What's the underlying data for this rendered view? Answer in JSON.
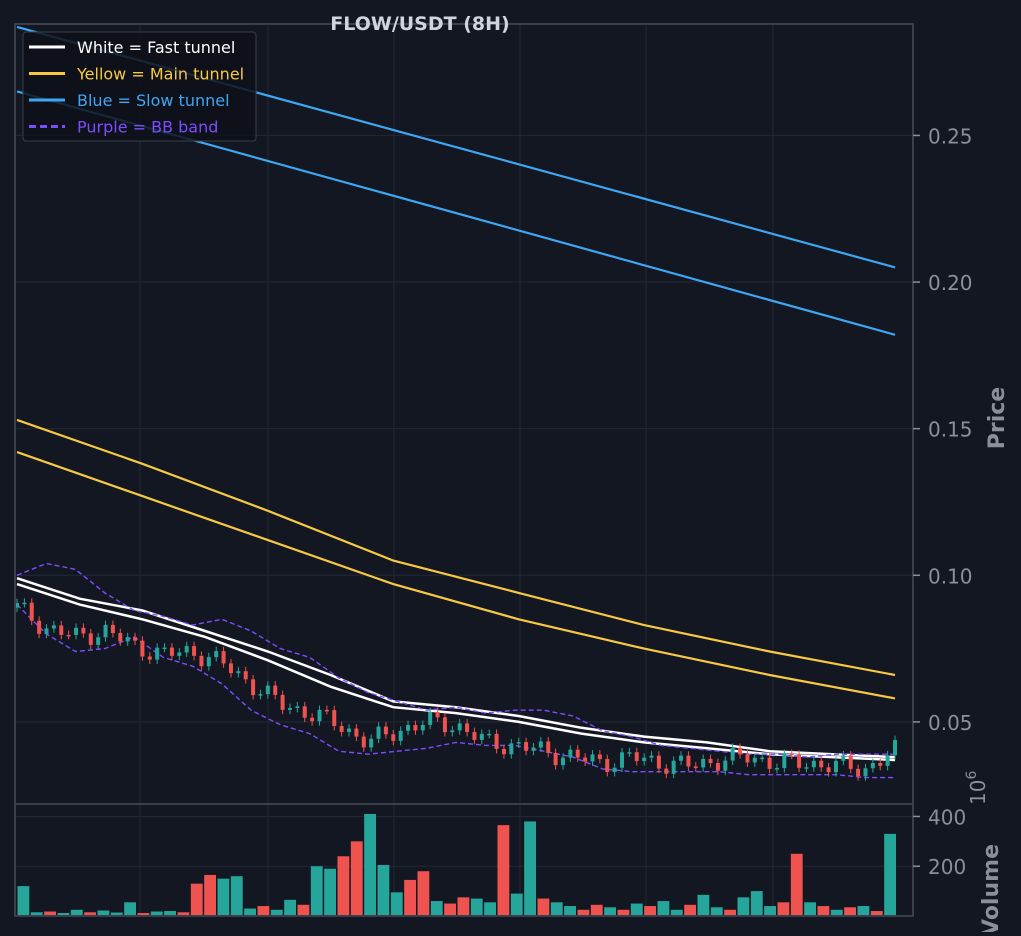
{
  "chart_data": [
    {
      "type": "candlestick",
      "title": "FLOW/USDT (8H)",
      "ylabel": "Price",
      "ylim": [
        0.022,
        0.288
      ],
      "y_ticks": [
        0.05,
        0.1,
        0.15,
        0.2,
        0.25
      ],
      "y_tick_labels": [
        "0.05",
        "0.10",
        "0.15",
        "0.20",
        "0.25"
      ],
      "y_axis_side": "right",
      "grid": true,
      "legend_position": "top-left",
      "legend": [
        {
          "label": "White = Fast tunnel",
          "color": "#ffffff",
          "style": "solid"
        },
        {
          "label": "Yellow = Main tunnel",
          "color": "#f7c843",
          "style": "solid"
        },
        {
          "label": "Blue = Slow tunnel",
          "color": "#3ea6f2",
          "style": "solid"
        },
        {
          "label": "Purple = BB band",
          "color": "#7c4dff",
          "style": "dashed"
        }
      ],
      "series": [
        {
          "name": "Fast tunnel upper",
          "color": "#ffffff",
          "x": [
            0,
            15,
            30,
            45,
            60,
            75,
            90,
            105,
            120,
            135,
            150,
            165,
            180,
            195,
            210
          ],
          "values": [
            0.099,
            0.092,
            0.088,
            0.081,
            0.074,
            0.066,
            0.057,
            0.055,
            0.052,
            0.048,
            0.045,
            0.043,
            0.04,
            0.039,
            0.038
          ]
        },
        {
          "name": "Fast tunnel lower",
          "color": "#ffffff",
          "x": [
            0,
            15,
            30,
            45,
            60,
            75,
            90,
            105,
            120,
            135,
            150,
            165,
            180,
            195,
            210
          ],
          "values": [
            0.097,
            0.09,
            0.085,
            0.079,
            0.071,
            0.062,
            0.055,
            0.053,
            0.05,
            0.046,
            0.043,
            0.041,
            0.039,
            0.038,
            0.037
          ]
        },
        {
          "name": "Main tunnel upper",
          "color": "#f7c843",
          "x": [
            0,
            30,
            60,
            90,
            120,
            150,
            180,
            210
          ],
          "values": [
            0.153,
            0.138,
            0.122,
            0.105,
            0.094,
            0.083,
            0.074,
            0.066
          ]
        },
        {
          "name": "Main tunnel lower",
          "color": "#f7c843",
          "x": [
            0,
            30,
            60,
            90,
            120,
            150,
            180,
            210
          ],
          "values": [
            0.142,
            0.127,
            0.112,
            0.097,
            0.085,
            0.075,
            0.066,
            0.058
          ]
        },
        {
          "name": "Slow tunnel upper",
          "color": "#3ea6f2",
          "x": [
            0,
            210
          ],
          "values": [
            0.287,
            0.205
          ]
        },
        {
          "name": "Slow tunnel lower",
          "color": "#3ea6f2",
          "x": [
            0,
            210
          ],
          "values": [
            0.265,
            0.182
          ]
        },
        {
          "name": "BB upper",
          "color": "#7c4dff",
          "x": [
            0,
            7,
            14,
            21,
            28,
            35,
            42,
            49,
            56,
            63,
            70,
            77,
            84,
            91,
            98,
            105,
            112,
            119,
            126,
            133,
            140,
            147,
            154,
            161,
            168,
            175,
            182,
            189,
            196,
            203,
            210
          ],
          "values": [
            0.1,
            0.104,
            0.102,
            0.094,
            0.088,
            0.086,
            0.083,
            0.085,
            0.081,
            0.075,
            0.072,
            0.065,
            0.06,
            0.057,
            0.054,
            0.055,
            0.053,
            0.054,
            0.054,
            0.052,
            0.047,
            0.045,
            0.042,
            0.041,
            0.04,
            0.039,
            0.039,
            0.038,
            0.039,
            0.039,
            0.039
          ]
        },
        {
          "name": "BB lower",
          "color": "#7c4dff",
          "x": [
            0,
            7,
            14,
            21,
            28,
            35,
            42,
            49,
            56,
            63,
            70,
            77,
            84,
            91,
            98,
            105,
            112,
            119,
            126,
            133,
            140,
            147,
            154,
            161,
            168,
            175,
            182,
            189,
            196,
            203,
            210
          ],
          "values": [
            0.09,
            0.08,
            0.074,
            0.075,
            0.079,
            0.072,
            0.069,
            0.063,
            0.054,
            0.049,
            0.046,
            0.04,
            0.039,
            0.04,
            0.041,
            0.043,
            0.042,
            0.042,
            0.04,
            0.038,
            0.034,
            0.033,
            0.033,
            0.033,
            0.033,
            0.032,
            0.032,
            0.032,
            0.032,
            0.031,
            0.031
          ]
        }
      ],
      "candles": {
        "up_color": "#26a69a",
        "down_color": "#ef5350",
        "x": [
          0,
          7,
          14,
          21,
          28,
          35,
          42,
          49,
          56,
          63,
          70,
          77,
          84,
          91,
          98,
          105,
          112,
          119,
          126,
          133,
          140,
          147,
          154,
          161,
          168,
          175,
          182,
          189,
          196,
          203,
          210
        ],
        "close": [
          0.089,
          0.082,
          0.079,
          0.081,
          0.076,
          0.073,
          0.074,
          0.07,
          0.063,
          0.056,
          0.053,
          0.049,
          0.043,
          0.047,
          0.05,
          0.049,
          0.043,
          0.042,
          0.04,
          0.038,
          0.036,
          0.038,
          0.036,
          0.035,
          0.037,
          0.038,
          0.036,
          0.036,
          0.035,
          0.034,
          0.04
        ]
      }
    },
    {
      "type": "bar",
      "ylabel": "Volume",
      "scale_label": "1e6",
      "ylim": [
        0,
        450
      ],
      "y_ticks": [
        200,
        400
      ],
      "y_tick_labels": [
        "200",
        "400"
      ],
      "grid": true,
      "up_color": "#26a69a",
      "down_color": "#ef5350",
      "values": [
        120,
        15,
        18,
        12,
        25,
        15,
        22,
        14,
        55,
        12,
        18,
        20,
        15,
        130,
        165,
        150,
        160,
        30,
        40,
        25,
        65,
        45,
        200,
        190,
        240,
        300,
        410,
        205,
        95,
        145,
        180,
        60,
        50,
        75,
        70,
        55,
        365,
        90,
        380,
        70,
        55,
        40,
        25,
        45,
        35,
        25,
        50,
        40,
        60,
        25,
        45,
        85,
        35,
        25,
        75,
        100,
        40,
        55,
        250,
        55,
        40,
        25,
        35,
        40,
        20,
        330
      ],
      "up": [
        1,
        1,
        0,
        1,
        1,
        0,
        1,
        1,
        1,
        0,
        1,
        1,
        0,
        0,
        0,
        1,
        1,
        1,
        0,
        1,
        1,
        0,
        1,
        1,
        0,
        0,
        1,
        1,
        1,
        0,
        0,
        1,
        0,
        0,
        1,
        1,
        0,
        1,
        1,
        0,
        1,
        1,
        0,
        0,
        1,
        0,
        1,
        0,
        1,
        1,
        0,
        1,
        1,
        0,
        1,
        1,
        1,
        0,
        0,
        1,
        0,
        1,
        0,
        1,
        0,
        1
      ]
    }
  ]
}
